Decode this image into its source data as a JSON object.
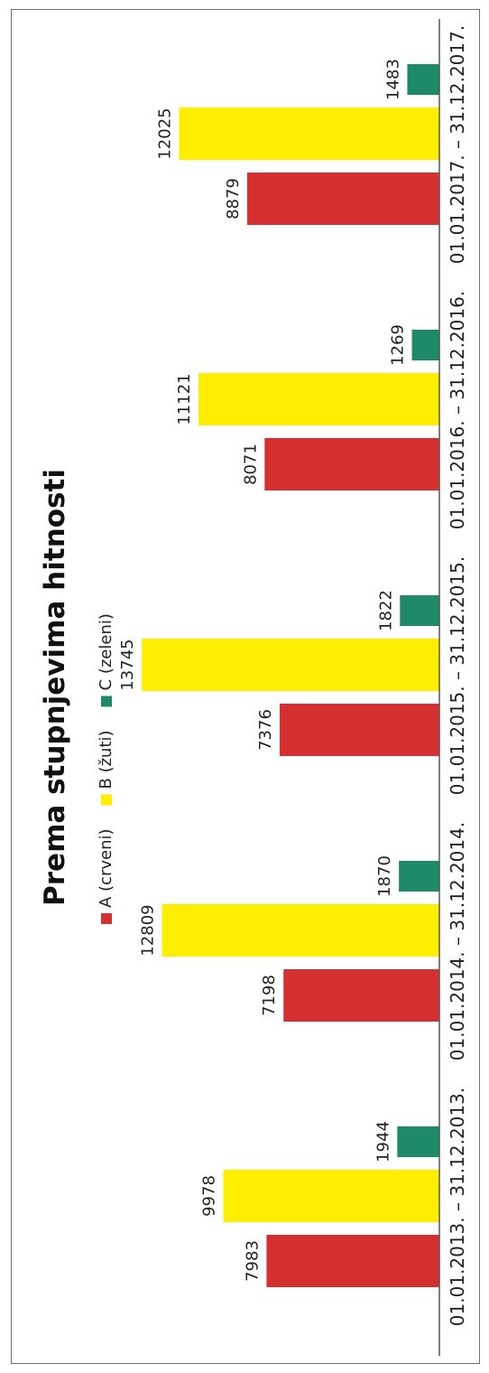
{
  "chart_data": {
    "type": "bar",
    "title": "Prema stupnjevima hitnosti",
    "categories": [
      "01.01.2013. – 31.12.2013.",
      "01.01.2014. – 31.12.2014.",
      "01.01.2015. – 31.12.2015.",
      "01.01.2016. – 31.12.2016.",
      "01.01.2017. – 31.12.2017."
    ],
    "series": [
      {
        "name": "A (crveni)",
        "color": "#d62f2f",
        "values": [
          7983,
          7198,
          7376,
          8071,
          8879
        ]
      },
      {
        "name": "B (žuti)",
        "color": "#ffee00",
        "values": [
          9978,
          12809,
          13745,
          11121,
          12025
        ]
      },
      {
        "name": "C (zeleni)",
        "color": "#1f8a6a",
        "values": [
          1944,
          1870,
          1822,
          1269,
          1483
        ]
      }
    ],
    "ylim": [
      0,
      15000
    ],
    "grid": false,
    "legend_position": "top",
    "data_labels": true
  }
}
